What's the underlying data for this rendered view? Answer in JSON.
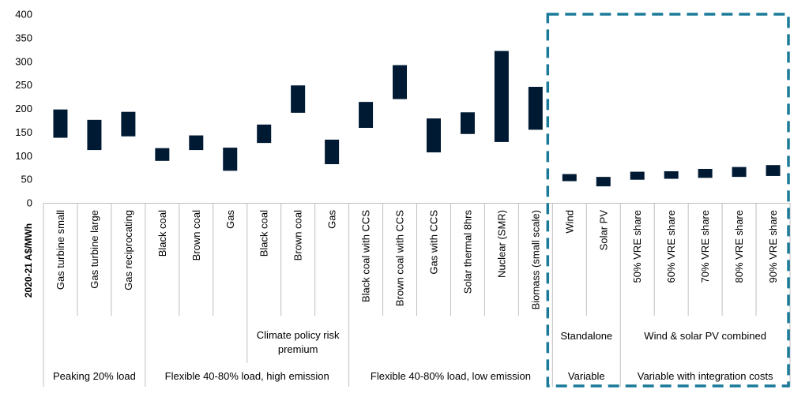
{
  "chart_data": {
    "type": "bar",
    "subtype": "floating-range",
    "ylabel": "2020-21 A$/MWh",
    "ylim": [
      0,
      400
    ],
    "yticks": [
      0,
      50,
      100,
      150,
      200,
      250,
      300,
      350,
      400
    ],
    "grid": false,
    "bar_color": "#001a33",
    "highlight_box_color": "#1a7a99",
    "categories": [
      {
        "label": "Gas turbine small",
        "low": 138,
        "high": 198
      },
      {
        "label": "Gas turbine large",
        "low": 112,
        "high": 176
      },
      {
        "label": "Gas reciprocating",
        "low": 141,
        "high": 193
      },
      {
        "label": "Black coal",
        "low": 89,
        "high": 116
      },
      {
        "label": "Brown coal",
        "low": 112,
        "high": 143
      },
      {
        "label": "Gas",
        "low": 68,
        "high": 117
      },
      {
        "label": "Black coal",
        "low": 127,
        "high": 166
      },
      {
        "label": "Brown coal",
        "low": 191,
        "high": 249
      },
      {
        "label": "Gas",
        "low": 82,
        "high": 134
      },
      {
        "label": "Black coal with CCS",
        "low": 159,
        "high": 214
      },
      {
        "label": "Brown coal with CCS",
        "low": 220,
        "high": 292
      },
      {
        "label": "Gas with CCS",
        "low": 107,
        "high": 179
      },
      {
        "label": "Solar thermal 8hrs",
        "low": 146,
        "high": 192
      },
      {
        "label": "Nuclear (SMR)",
        "low": 129,
        "high": 322
      },
      {
        "label": "Biomass (small scale)",
        "low": 155,
        "high": 246
      },
      {
        "label": "Wind",
        "low": 46,
        "high": 61
      },
      {
        "label": "Solar PV",
        "low": 35,
        "high": 55
      },
      {
        "label": "50% VRE share",
        "low": 49,
        "high": 66
      },
      {
        "label": "60% VRE share",
        "low": 51,
        "high": 67
      },
      {
        "label": "70% VRE share",
        "low": 53,
        "high": 72
      },
      {
        "label": "80% VRE share",
        "low": 55,
        "high": 76
      },
      {
        "label": "90% VRE share",
        "low": 57,
        "high": 80
      }
    ],
    "subgroups": [
      {
        "label_lines": [
          "Climate policy risk",
          "premium"
        ],
        "from": 6,
        "to": 8
      },
      {
        "label_lines": [
          "Standalone"
        ],
        "from": 15,
        "to": 16
      },
      {
        "label_lines": [
          "Wind & solar PV combined"
        ],
        "from": 17,
        "to": 21
      }
    ],
    "groups": [
      {
        "label": "Peaking 20% load",
        "from": 0,
        "to": 2
      },
      {
        "label": "Flexible 40-80% load, high emission",
        "from": 3,
        "to": 8
      },
      {
        "label": "Flexible 40-80% load, low emission",
        "from": 9,
        "to": 14
      },
      {
        "label": "Variable",
        "from": 15,
        "to": 16
      },
      {
        "label": "Variable with integration costs",
        "from": 17,
        "to": 21
      }
    ]
  }
}
